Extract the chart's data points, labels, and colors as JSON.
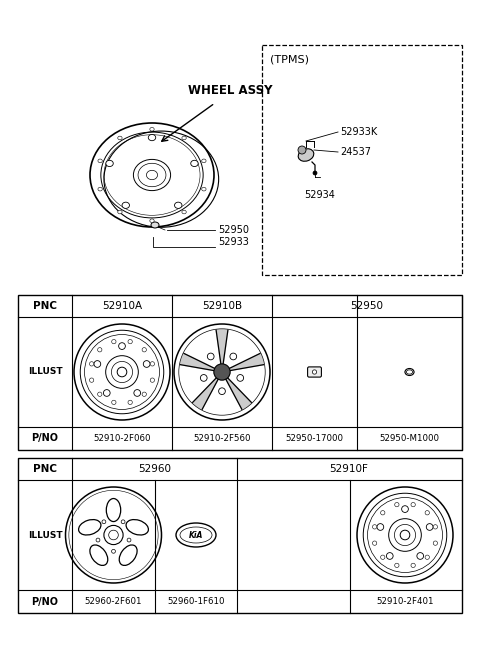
{
  "bg_color": "#ffffff",
  "table1": {
    "pnc_labels": [
      "PNC",
      "52910A",
      "52910B",
      "52950"
    ],
    "illust_label": "ILLUST",
    "pno_labels": [
      "P/NO",
      "52910-2F060",
      "52910-2F560",
      "52950-17000",
      "52950-M1000"
    ]
  },
  "table2": {
    "pnc_labels": [
      "PNC",
      "52960",
      "52910F"
    ],
    "illust_label": "ILLUST",
    "pno_labels": [
      "P/NO",
      "52960-2F601",
      "52960-1F610",
      "52910-2F401"
    ]
  },
  "diagram": {
    "wheel_assy": "WHEEL ASSY",
    "tpms_label": "(TPMS)",
    "labels_52950": "52950",
    "labels_52933": "52933",
    "labels_52933K": "52933K",
    "labels_24537": "24537",
    "labels_52934": "52934"
  }
}
